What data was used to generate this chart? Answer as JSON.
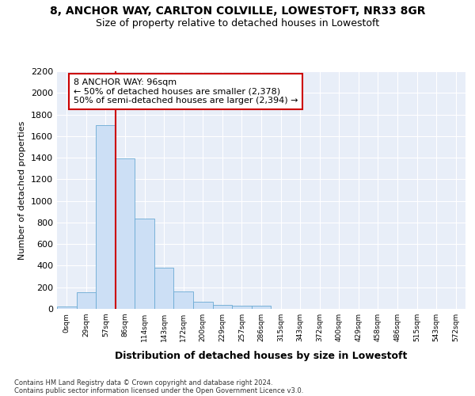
{
  "title1": "8, ANCHOR WAY, CARLTON COLVILLE, LOWESTOFT, NR33 8GR",
  "title2": "Size of property relative to detached houses in Lowestoft",
  "xlabel": "Distribution of detached houses by size in Lowestoft",
  "ylabel": "Number of detached properties",
  "footnote1": "Contains HM Land Registry data © Crown copyright and database right 2024.",
  "footnote2": "Contains public sector information licensed under the Open Government Licence v3.0.",
  "bin_labels": [
    "0sqm",
    "29sqm",
    "57sqm",
    "86sqm",
    "114sqm",
    "143sqm",
    "172sqm",
    "200sqm",
    "229sqm",
    "257sqm",
    "286sqm",
    "315sqm",
    "343sqm",
    "372sqm",
    "400sqm",
    "429sqm",
    "458sqm",
    "486sqm",
    "515sqm",
    "543sqm",
    "572sqm"
  ],
  "bar_heights": [
    20,
    155,
    1700,
    1390,
    835,
    385,
    160,
    65,
    35,
    28,
    28,
    0,
    0,
    0,
    0,
    0,
    0,
    0,
    0,
    0,
    0
  ],
  "bar_color": "#ccdff5",
  "bar_edge_color": "#6aaad4",
  "vline_color": "#cc0000",
  "ylim": [
    0,
    2200
  ],
  "yticks": [
    0,
    200,
    400,
    600,
    800,
    1000,
    1200,
    1400,
    1600,
    1800,
    2000,
    2200
  ],
  "annotation_line1": "8 ANCHOR WAY: 96sqm",
  "annotation_line2": "← 50% of detached houses are smaller (2,378)",
  "annotation_line3": "50% of semi-detached houses are larger (2,394) →",
  "bg_color": "#e8eef8",
  "grid_color": "#ffffff",
  "vline_bin_index": 3
}
